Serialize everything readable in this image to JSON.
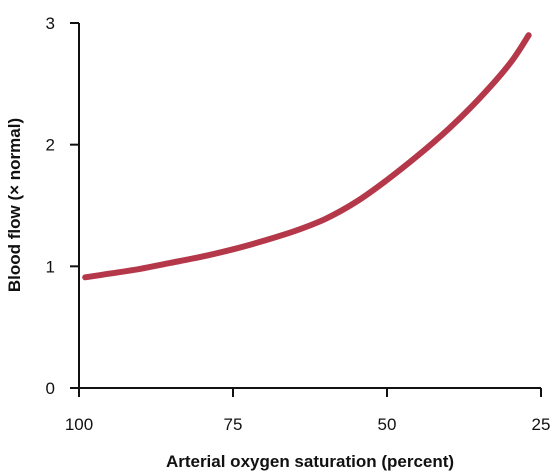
{
  "chart_data": {
    "type": "line",
    "title": "",
    "xlabel": "Arterial oxygen saturation (percent)",
    "ylabel": "Blood flow (× normal)",
    "xlim": [
      100,
      25
    ],
    "ylim": [
      0,
      3
    ],
    "x_ticks": [
      "100",
      "75",
      "50",
      "25"
    ],
    "y_ticks": [
      "0",
      "1",
      "2",
      "3"
    ],
    "grid": false,
    "legend": "none",
    "series": [
      {
        "color": "#b5384a",
        "x": [
          99,
          95,
          90,
          85,
          80,
          75,
          70,
          65,
          60,
          55,
          50,
          45,
          40,
          35,
          30,
          27
        ],
        "y": [
          0.91,
          0.94,
          0.98,
          1.03,
          1.08,
          1.14,
          1.21,
          1.29,
          1.39,
          1.53,
          1.71,
          1.91,
          2.13,
          2.38,
          2.67,
          2.9
        ]
      }
    ]
  }
}
